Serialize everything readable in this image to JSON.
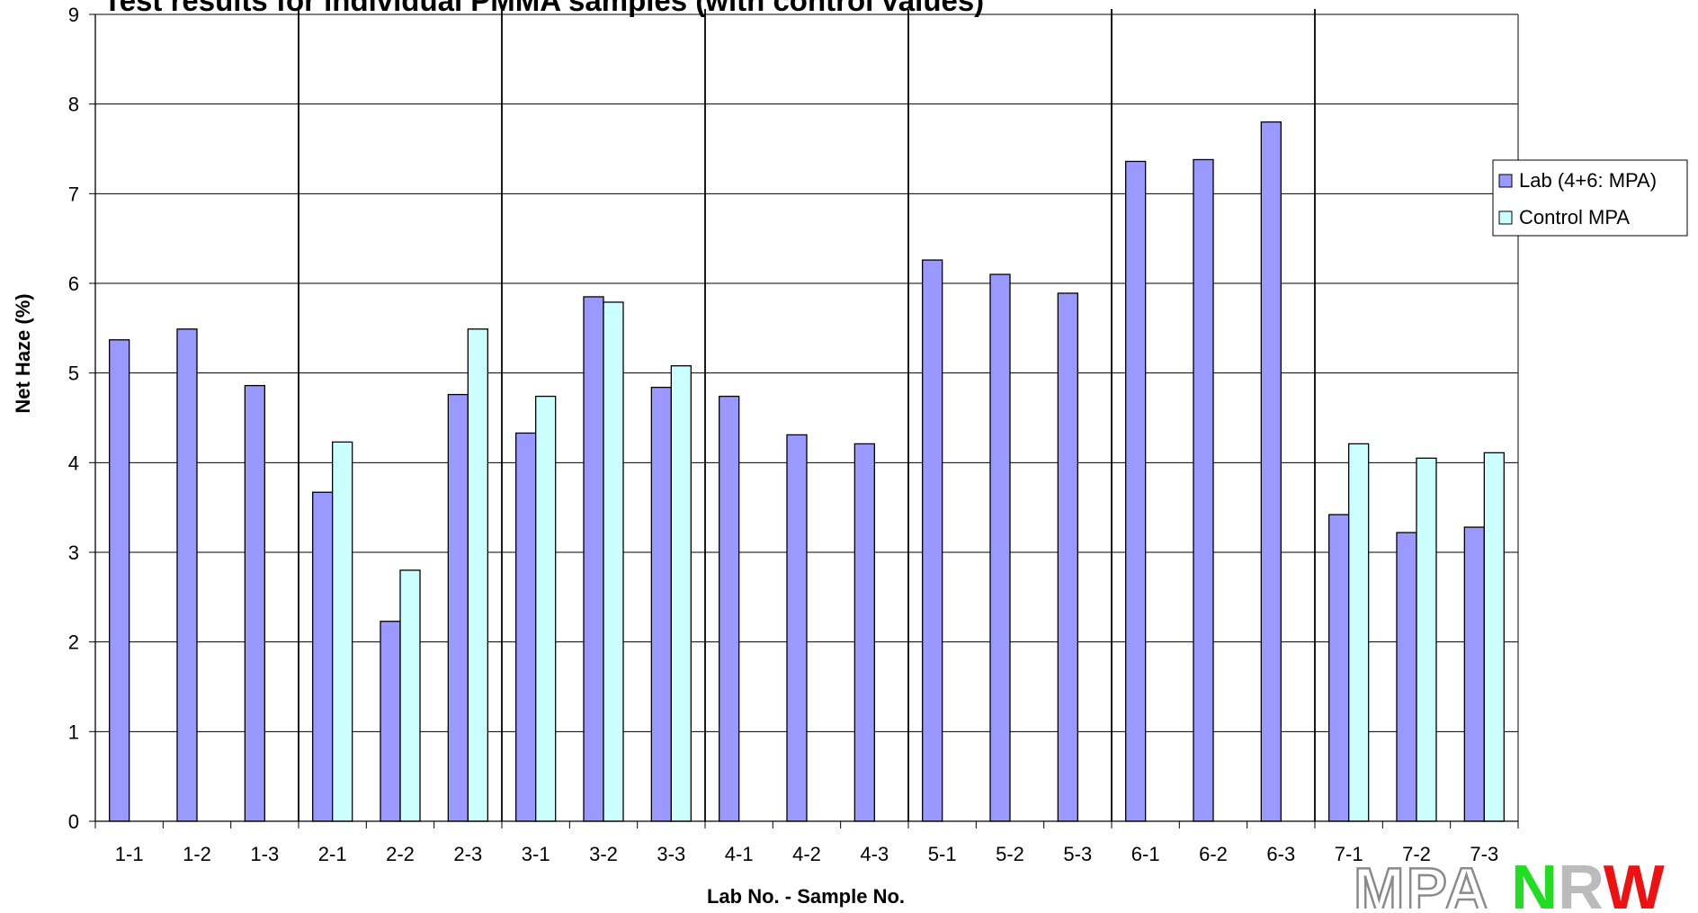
{
  "chart_data": {
    "type": "bar",
    "title": "Test results for individual PMMA samples (with control values)",
    "xlabel": "Lab No. - Sample No.",
    "ylabel": "Net Haze (%)",
    "ylim": [
      0,
      9
    ],
    "yticks": [
      0,
      1,
      2,
      3,
      4,
      5,
      6,
      7,
      8,
      9
    ],
    "grid": true,
    "legend_position": "right",
    "categories": [
      "1-1",
      "1-2",
      "1-3",
      "2-1",
      "2-2",
      "2-3",
      "3-1",
      "3-2",
      "3-3",
      "4-1",
      "4-2",
      "4-3",
      "5-1",
      "5-2",
      "5-3",
      "6-1",
      "6-2",
      "6-3",
      "7-1",
      "7-2",
      "7-3"
    ],
    "series": [
      {
        "name": "Lab (4+6: MPA)",
        "color": "#9999ff",
        "values": [
          5.37,
          5.49,
          4.86,
          3.67,
          2.23,
          4.76,
          4.33,
          5.85,
          4.84,
          4.74,
          4.31,
          4.21,
          6.26,
          6.1,
          5.89,
          7.36,
          7.38,
          7.8,
          3.42,
          3.22,
          3.28
        ]
      },
      {
        "name": "Control MPA",
        "color": "#ccffff",
        "values": [
          null,
          null,
          null,
          4.23,
          2.8,
          5.49,
          4.74,
          5.79,
          5.08,
          null,
          null,
          null,
          null,
          null,
          null,
          null,
          null,
          null,
          4.21,
          4.05,
          4.11
        ]
      }
    ],
    "group_separators_after": [
      "1-3",
      "2-3",
      "3-3",
      "4-3",
      "5-3",
      "6-3"
    ]
  },
  "logo": {
    "text_mpa": "MPA",
    "text_nrw": "NRW",
    "colors": {
      "mpa": "#b5b5b5",
      "n": "#22dd22",
      "r": "#bbbbbb",
      "w": "#ee1111"
    }
  }
}
